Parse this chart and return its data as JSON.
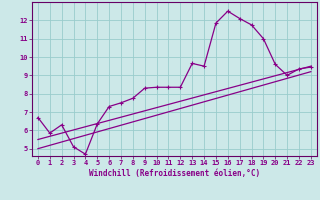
{
  "title": "",
  "xlabel": "Windchill (Refroidissement éolien,°C)",
  "bg_color": "#cce8e8",
  "line_color": "#880088",
  "grid_color": "#99cccc",
  "axis_color": "#660066",
  "text_color": "#880088",
  "xlim": [
    -0.5,
    23.5
  ],
  "ylim": [
    4.6,
    13.0
  ],
  "xticks": [
    0,
    1,
    2,
    3,
    4,
    5,
    6,
    7,
    8,
    9,
    10,
    11,
    12,
    13,
    14,
    15,
    16,
    17,
    18,
    19,
    20,
    21,
    22,
    23
  ],
  "yticks": [
    5,
    6,
    7,
    8,
    9,
    10,
    11,
    12
  ],
  "line1_x": [
    0,
    1,
    2,
    3,
    4,
    5,
    6,
    7,
    8,
    9,
    10,
    11,
    12,
    13,
    14,
    15,
    16,
    17,
    18,
    19,
    20,
    21,
    22,
    23
  ],
  "line1_y": [
    6.7,
    5.85,
    6.3,
    5.1,
    4.7,
    6.35,
    7.3,
    7.5,
    7.75,
    8.3,
    8.35,
    8.35,
    8.35,
    9.65,
    9.5,
    11.85,
    12.5,
    12.1,
    11.75,
    11.0,
    9.6,
    9.0,
    9.35,
    9.45
  ],
  "line2_x": [
    0,
    23
  ],
  "line2_y": [
    5.5,
    9.5
  ],
  "line3_x": [
    0,
    23
  ],
  "line3_y": [
    5.0,
    9.2
  ]
}
